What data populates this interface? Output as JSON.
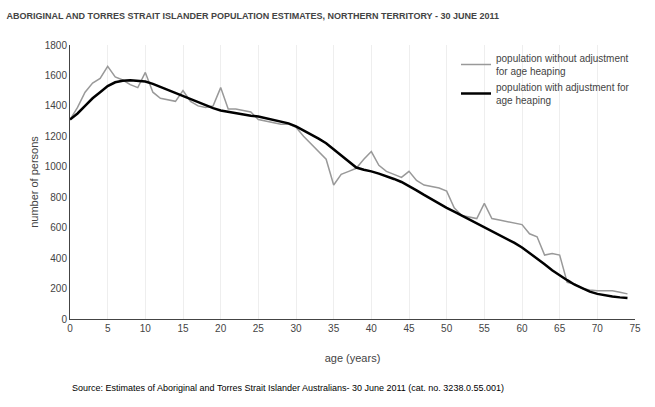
{
  "chart_data": {
    "type": "line",
    "title": "ABORIGINAL AND TORRES STRAIT ISLANDER POPULATION ESTIMATES, NORTHERN TERRITORY - 30 JUNE 2011",
    "xlabel": "age (years)",
    "ylabel": "number of persons",
    "annotations": [
      "Source: Estimates of Aboriginal and Torres Strait Islander Australians- 30 June 2011 (cat. no. 3238.0.55.001)"
    ],
    "x": [
      0,
      1,
      2,
      3,
      4,
      5,
      6,
      7,
      8,
      9,
      10,
      11,
      12,
      13,
      14,
      15,
      16,
      17,
      18,
      19,
      20,
      21,
      22,
      23,
      24,
      25,
      26,
      27,
      28,
      29,
      30,
      31,
      32,
      33,
      34,
      35,
      36,
      37,
      38,
      39,
      40,
      41,
      42,
      43,
      44,
      45,
      46,
      47,
      48,
      49,
      50,
      51,
      52,
      53,
      54,
      55,
      56,
      57,
      58,
      59,
      60,
      61,
      62,
      63,
      64,
      65,
      66,
      67,
      68,
      69,
      70,
      71,
      72,
      73,
      74
    ],
    "series": [
      {
        "name": "population without adjustment\nfor age heaping",
        "color": "#999999",
        "values": [
          1310,
          1390,
          1490,
          1550,
          1580,
          1660,
          1590,
          1570,
          1540,
          1520,
          1620,
          1490,
          1450,
          1440,
          1430,
          1500,
          1430,
          1400,
          1390,
          1400,
          1520,
          1380,
          1380,
          1370,
          1360,
          1310,
          1300,
          1290,
          1280,
          1280,
          1260,
          1200,
          1150,
          1100,
          1050,
          880,
          950,
          970,
          990,
          1050,
          1100,
          1010,
          970,
          950,
          930,
          970,
          910,
          880,
          870,
          860,
          840,
          730,
          680,
          670,
          660,
          760,
          660,
          650,
          640,
          630,
          620,
          560,
          540,
          420,
          430,
          420,
          240,
          230,
          200,
          190,
          185,
          185,
          185,
          175,
          165
        ]
      },
      {
        "name": "population with adjustment for\nage heaping",
        "color": "#000000",
        "values": [
          1310,
          1350,
          1400,
          1450,
          1490,
          1530,
          1555,
          1565,
          1568,
          1565,
          1560,
          1545,
          1525,
          1505,
          1485,
          1460,
          1440,
          1420,
          1400,
          1385,
          1370,
          1360,
          1350,
          1342,
          1335,
          1330,
          1320,
          1310,
          1300,
          1285,
          1265,
          1240,
          1215,
          1185,
          1155,
          1115,
          1070,
          1030,
          995,
          980,
          970,
          955,
          940,
          920,
          900,
          875,
          845,
          815,
          785,
          758,
          730,
          705,
          680,
          655,
          630,
          605,
          580,
          555,
          528,
          500,
          470,
          435,
          400,
          360,
          320,
          285,
          255,
          225,
          200,
          180,
          165,
          155,
          148,
          142,
          138
        ]
      }
    ],
    "xlim": [
      0,
      75
    ],
    "ylim": [
      0,
      1800
    ],
    "xticks": [
      0,
      5,
      10,
      15,
      20,
      25,
      30,
      35,
      40,
      45,
      50,
      55,
      60,
      65,
      70,
      75
    ],
    "yticks": [
      0,
      200,
      400,
      600,
      800,
      1000,
      1200,
      1400,
      1600,
      1800
    ],
    "grid": "x",
    "legend": "upper right"
  }
}
